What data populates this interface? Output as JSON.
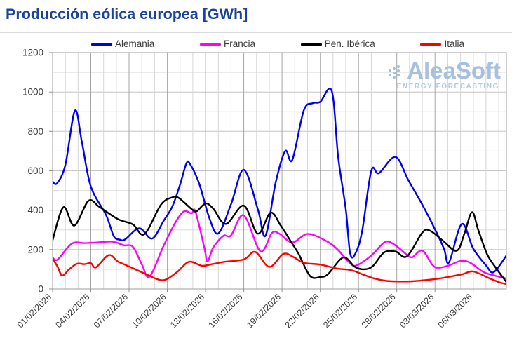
{
  "page": {
    "title": "Producción eólica europea [GWh]",
    "title_color": "#1a4496"
  },
  "watermark": {
    "brand": "AleaSoft",
    "tagline": "ENERGY FORECASTING",
    "color": "#a6c0df"
  },
  "chart_data": {
    "type": "line",
    "title": "Producción eólica europea [GWh]",
    "xlabel": "",
    "ylabel": "",
    "x_unit": "days since 01/02/2026",
    "xlim": [
      0,
      35.6
    ],
    "ylim": [
      0,
      1200
    ],
    "grid": "on",
    "legend_position": "top",
    "y_ticks": [
      0,
      200,
      400,
      600,
      800,
      1000,
      1200
    ],
    "y_minor_step": 100,
    "x_minor_step_days": 1,
    "x_ticks": [
      {
        "day": 0,
        "label": "01/02/2026"
      },
      {
        "day": 3,
        "label": "04/02/2026"
      },
      {
        "day": 6,
        "label": "07/02/2026"
      },
      {
        "day": 9,
        "label": "10/02/2026"
      },
      {
        "day": 12,
        "label": "13/02/2026"
      },
      {
        "day": 15,
        "label": "16/02/2026"
      },
      {
        "day": 18,
        "label": "19/02/2026"
      },
      {
        "day": 21,
        "label": "22/02/2026"
      },
      {
        "day": 24,
        "label": "25/02/2026"
      },
      {
        "day": 27,
        "label": "28/02/2026"
      },
      {
        "day": 30,
        "label": "03/03/2026"
      },
      {
        "day": 33,
        "label": "06/03/2026"
      }
    ],
    "colors": {
      "grid_minor_h": "#dedede",
      "grid_major_h": "#c6c6c6",
      "grid_minor_v": "#d6d6d6",
      "grid_major_v": "#a6a6a6",
      "plot_border": "#9e9e9e",
      "tick": "#8f8f8f",
      "tick_label": "#3c3c3c"
    },
    "series": [
      {
        "name": "Alemania",
        "color": "#0000ee",
        "points": [
          [
            0,
            545
          ],
          [
            0.35,
            537
          ],
          [
            1.0,
            630
          ],
          [
            1.75,
            905
          ],
          [
            2.3,
            745
          ],
          [
            3.0,
            520
          ],
          [
            4.2,
            375
          ],
          [
            4.8,
            268
          ],
          [
            5.3,
            250
          ],
          [
            5.7,
            252
          ],
          [
            6.8,
            308
          ],
          [
            7.8,
            256
          ],
          [
            8.7,
            345
          ],
          [
            9.4,
            420
          ],
          [
            10.0,
            530
          ],
          [
            10.5,
            638
          ],
          [
            10.8,
            632
          ],
          [
            11.5,
            535
          ],
          [
            12.3,
            360
          ],
          [
            13.0,
            282
          ],
          [
            14.0,
            430
          ],
          [
            15.0,
            605
          ],
          [
            16.1,
            405
          ],
          [
            16.7,
            270
          ],
          [
            17.5,
            540
          ],
          [
            18.25,
            700
          ],
          [
            18.8,
            655
          ],
          [
            19.7,
            905
          ],
          [
            20.4,
            943
          ],
          [
            21.0,
            950
          ],
          [
            21.9,
            1005
          ],
          [
            22.4,
            672
          ],
          [
            23.0,
            405
          ],
          [
            23.35,
            178
          ],
          [
            23.8,
            186
          ],
          [
            24.3,
            300
          ],
          [
            25.0,
            600
          ],
          [
            25.6,
            588
          ],
          [
            26.9,
            670
          ],
          [
            27.9,
            553
          ],
          [
            29.0,
            428
          ],
          [
            29.9,
            316
          ],
          [
            30.7,
            205
          ],
          [
            31.1,
            135
          ],
          [
            32.1,
            330
          ],
          [
            33.0,
            205
          ],
          [
            34.0,
            120
          ],
          [
            34.6,
            85
          ],
          [
            35.6,
            170
          ]
        ]
      },
      {
        "name": "Francia",
        "color": "#ff00ff",
        "points": [
          [
            0,
            160
          ],
          [
            0.4,
            150
          ],
          [
            1.5,
            230
          ],
          [
            2.5,
            233
          ],
          [
            3.5,
            236
          ],
          [
            4.7,
            240
          ],
          [
            5.6,
            222
          ],
          [
            6.3,
            214
          ],
          [
            7.0,
            125
          ],
          [
            7.6,
            63
          ],
          [
            8.7,
            218
          ],
          [
            9.6,
            334
          ],
          [
            10.3,
            394
          ],
          [
            10.9,
            384
          ],
          [
            11.2,
            394
          ],
          [
            11.9,
            210
          ],
          [
            12.15,
            140
          ],
          [
            12.6,
            210
          ],
          [
            13.4,
            270
          ],
          [
            14.0,
            272
          ],
          [
            15.0,
            374
          ],
          [
            16.3,
            192
          ],
          [
            17.2,
            284
          ],
          [
            17.8,
            280
          ],
          [
            18.8,
            236
          ],
          [
            20.0,
            279
          ],
          [
            21.4,
            246
          ],
          [
            22.3,
            204
          ],
          [
            23.2,
            140
          ],
          [
            23.8,
            119
          ],
          [
            25.0,
            170
          ],
          [
            26.1,
            239
          ],
          [
            26.9,
            221
          ],
          [
            27.7,
            179
          ],
          [
            28.2,
            161
          ],
          [
            29.0,
            195
          ],
          [
            29.8,
            122
          ],
          [
            30.3,
            108
          ],
          [
            31.1,
            120
          ],
          [
            32.0,
            142
          ],
          [
            32.75,
            134
          ],
          [
            33.8,
            86
          ],
          [
            34.8,
            66
          ],
          [
            35.5,
            55
          ]
        ]
      },
      {
        "name": "Pen. Ibérica",
        "color": "#000000",
        "points": [
          [
            0,
            248
          ],
          [
            0.85,
            415
          ],
          [
            1.7,
            322
          ],
          [
            2.8,
            447
          ],
          [
            3.6,
            420
          ],
          [
            4.2,
            393
          ],
          [
            5.2,
            352
          ],
          [
            6.3,
            328
          ],
          [
            7.2,
            278
          ],
          [
            8.5,
            428
          ],
          [
            9.4,
            465
          ],
          [
            9.9,
            462
          ],
          [
            10.9,
            406
          ],
          [
            11.3,
            395
          ],
          [
            12.0,
            434
          ],
          [
            12.6,
            408
          ],
          [
            13.6,
            330
          ],
          [
            15.0,
            423
          ],
          [
            16.1,
            281
          ],
          [
            17.1,
            387
          ],
          [
            17.9,
            322
          ],
          [
            18.7,
            240
          ],
          [
            19.3,
            178
          ],
          [
            20.2,
            66
          ],
          [
            21.0,
            61
          ],
          [
            21.6,
            75
          ],
          [
            22.8,
            160
          ],
          [
            23.7,
            113
          ],
          [
            24.4,
            100
          ],
          [
            25.1,
            115
          ],
          [
            26.0,
            185
          ],
          [
            26.9,
            190
          ],
          [
            27.8,
            166
          ],
          [
            29.0,
            286
          ],
          [
            29.6,
            296
          ],
          [
            30.6,
            246
          ],
          [
            31.7,
            194
          ],
          [
            32.3,
            280
          ],
          [
            32.9,
            390
          ],
          [
            33.4,
            298
          ],
          [
            34.1,
            175
          ],
          [
            34.8,
            105
          ],
          [
            35.6,
            35
          ]
        ]
      },
      {
        "name": "Italia",
        "color": "#ff0000",
        "points": [
          [
            0,
            155
          ],
          [
            0.4,
            112
          ],
          [
            0.75,
            68
          ],
          [
            1.3,
            100
          ],
          [
            1.9,
            128
          ],
          [
            2.5,
            126
          ],
          [
            3.0,
            131
          ],
          [
            3.4,
            110
          ],
          [
            4.4,
            172
          ],
          [
            5.1,
            140
          ],
          [
            5.8,
            120
          ],
          [
            7.0,
            85
          ],
          [
            8.2,
            50
          ],
          [
            8.9,
            48
          ],
          [
            9.8,
            88
          ],
          [
            10.7,
            138
          ],
          [
            11.7,
            118
          ],
          [
            12.5,
            126
          ],
          [
            13.5,
            138
          ],
          [
            15.0,
            150
          ],
          [
            15.9,
            188
          ],
          [
            17.0,
            112
          ],
          [
            18.1,
            178
          ],
          [
            18.9,
            162
          ],
          [
            19.7,
            133
          ],
          [
            21.0,
            124
          ],
          [
            22.3,
            104
          ],
          [
            23.4,
            96
          ],
          [
            24.4,
            72
          ],
          [
            25.3,
            52
          ],
          [
            26.2,
            41
          ],
          [
            27.2,
            38
          ],
          [
            28.2,
            39
          ],
          [
            29.2,
            45
          ],
          [
            30.2,
            52
          ],
          [
            31.3,
            64
          ],
          [
            32.2,
            76
          ],
          [
            33.0,
            89
          ],
          [
            34.2,
            56
          ],
          [
            35.0,
            35
          ],
          [
            35.6,
            25
          ]
        ]
      }
    ]
  }
}
